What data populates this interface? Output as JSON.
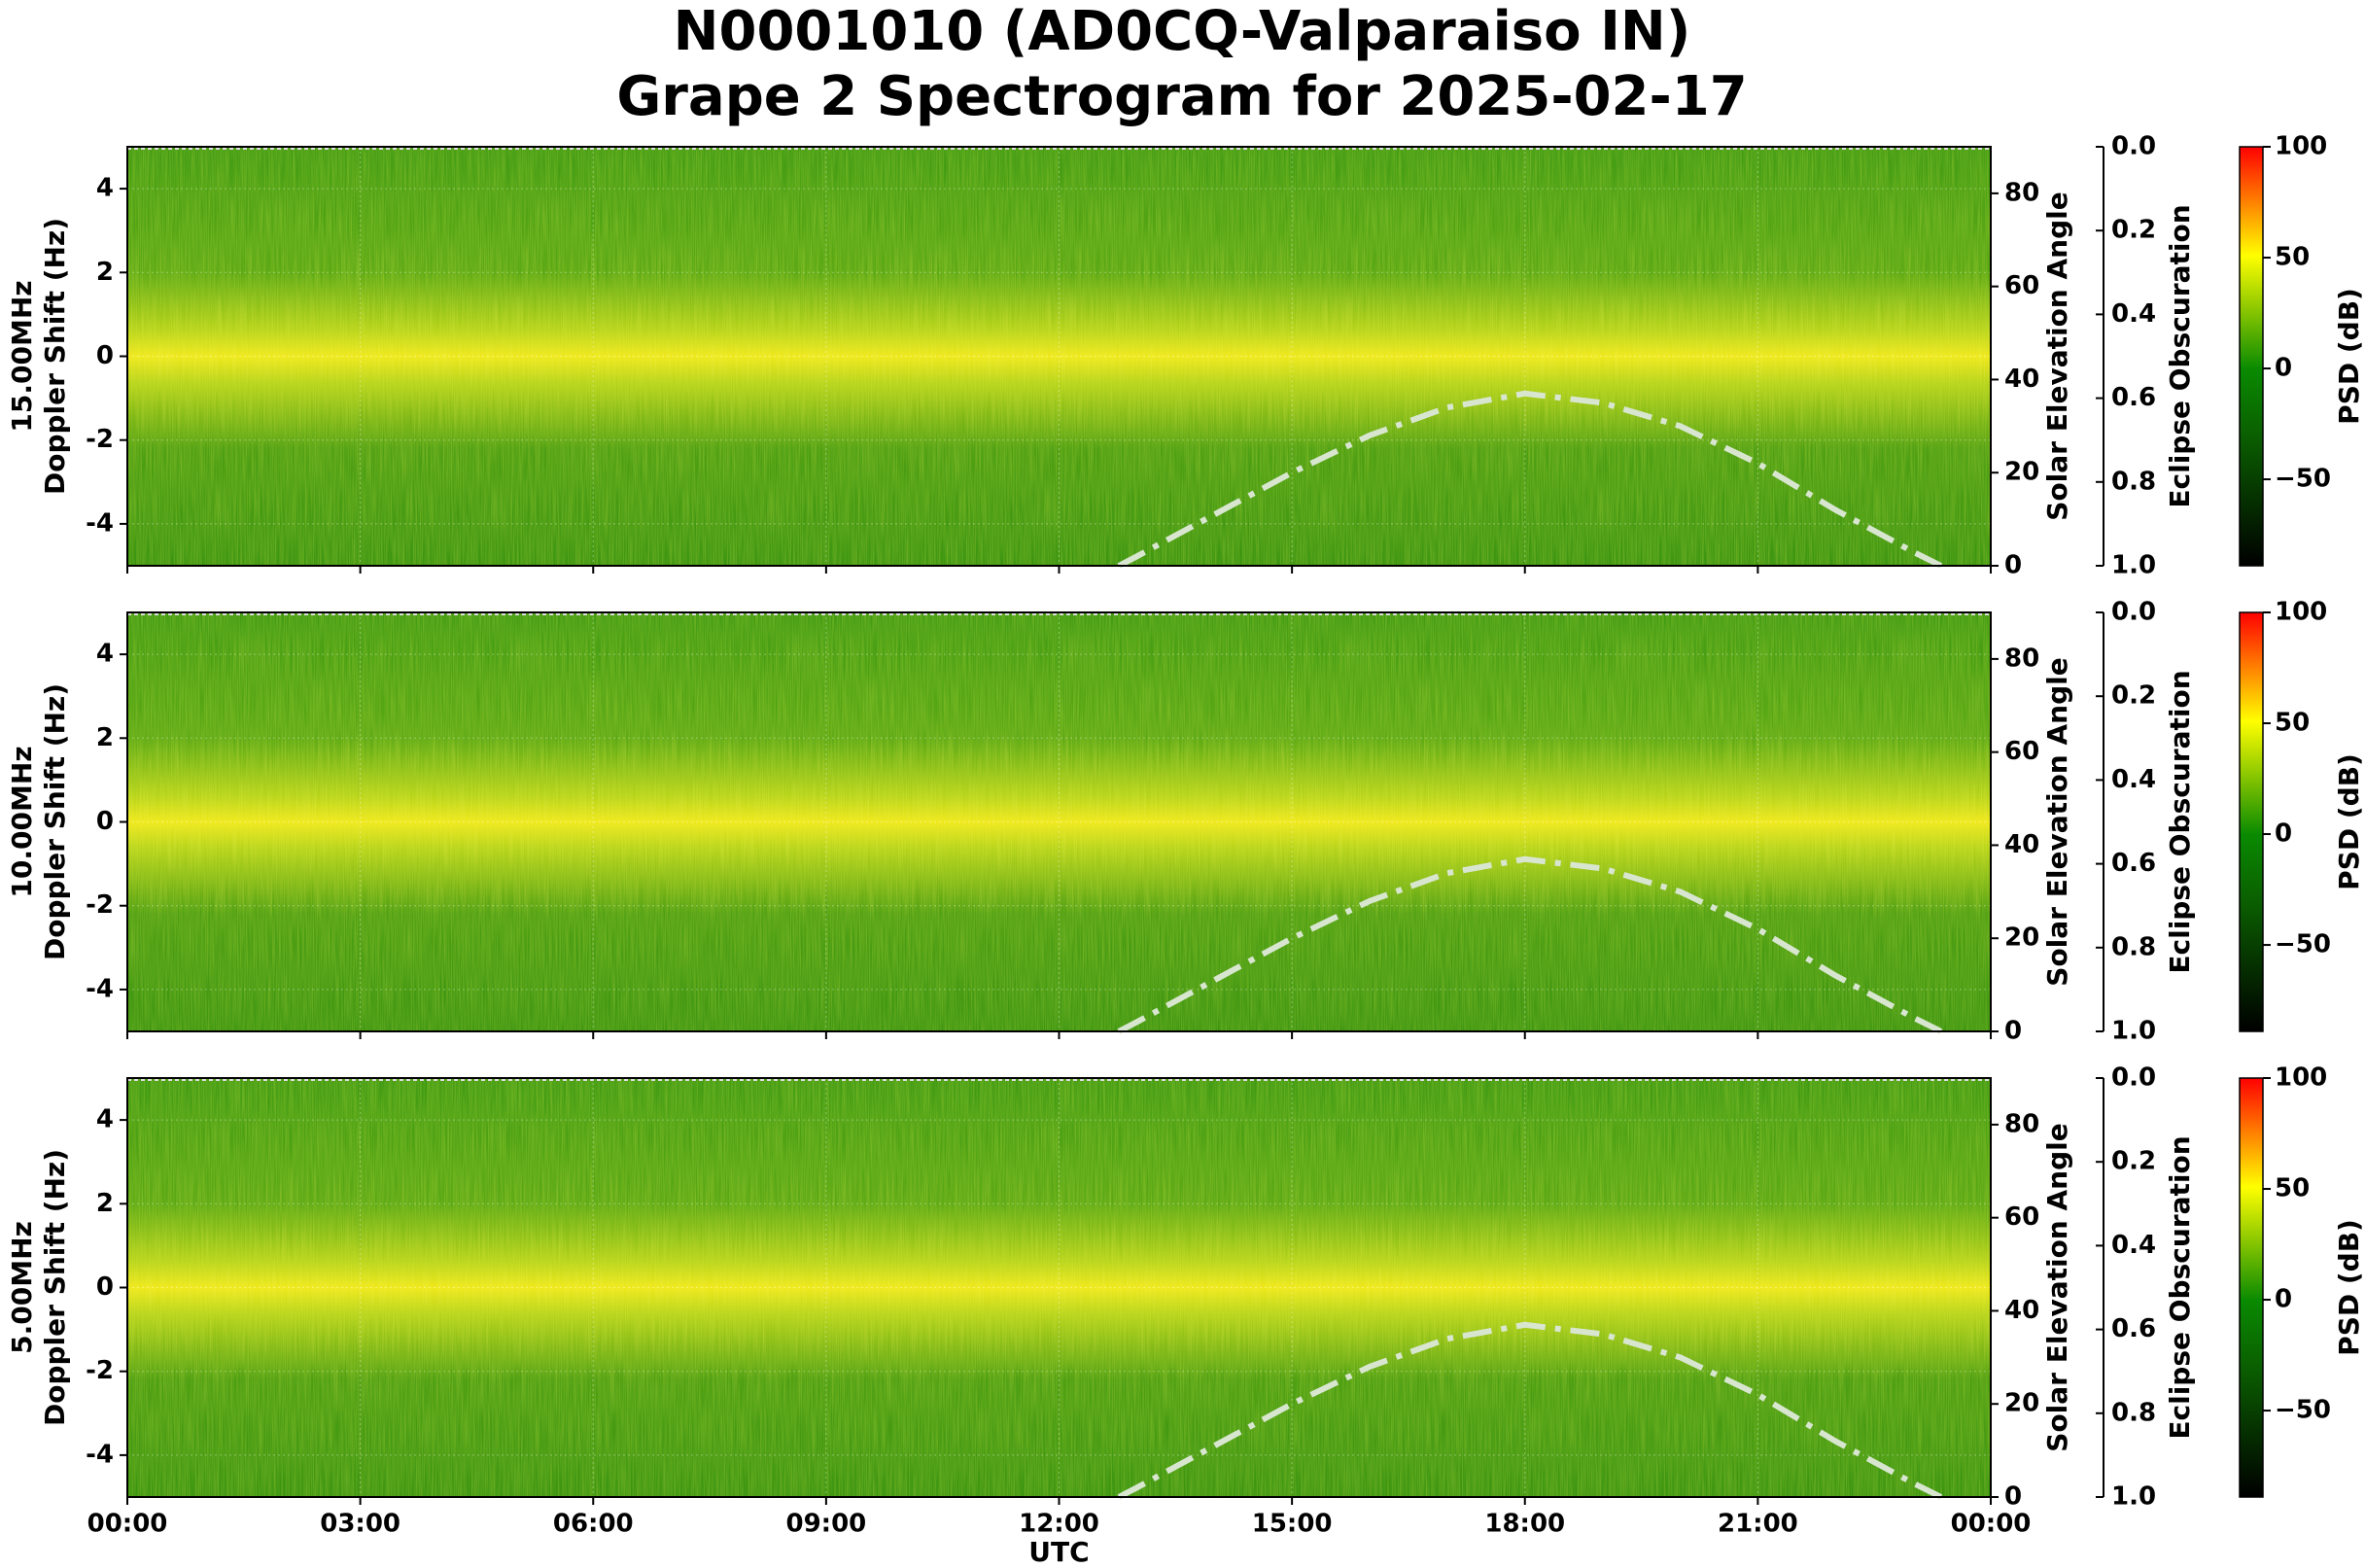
{
  "figure": {
    "title": [
      "N0001010 (AD0CQ-Valparaiso IN)",
      "Grape 2 Spectrogram for 2025-02-17"
    ],
    "xlabel": "UTC",
    "xlim": [
      0,
      24
    ],
    "xticks": [
      {
        "value": 0,
        "label": "00:00"
      },
      {
        "value": 3,
        "label": "03:00"
      },
      {
        "value": 6,
        "label": "06:00"
      },
      {
        "value": 9,
        "label": "09:00"
      },
      {
        "value": 12,
        "label": "12:00"
      },
      {
        "value": 15,
        "label": "15:00"
      },
      {
        "value": 18,
        "label": "18:00"
      },
      {
        "value": 21,
        "label": "21:00"
      },
      {
        "value": 24,
        "label": "00:00"
      }
    ]
  },
  "chart_data": [
    {
      "type": "spectrogram",
      "ylabel": [
        "15.00MHz",
        "Doppler Shift (Hz)"
      ],
      "ylim": [
        -5,
        5
      ],
      "yticks": [
        -4,
        -2,
        0,
        2,
        4
      ],
      "y2label": "Solar Elevation Angle",
      "y2lim": [
        0,
        90
      ],
      "y2ticks": [
        0,
        20,
        40,
        60,
        80
      ],
      "y3label": "Eclipse Obscuration",
      "y3lim": [
        1,
        0
      ],
      "y3ticks": [
        {
          "value": 0,
          "label": "0.0"
        },
        {
          "value": 0.2,
          "label": "0.2"
        },
        {
          "value": 0.4,
          "label": "0.4"
        },
        {
          "value": 0.6,
          "label": "0.6"
        },
        {
          "value": 0.8,
          "label": "0.8"
        },
        {
          "value": 1,
          "label": "1.0"
        }
      ],
      "colorbar": {
        "label": "PSD (dB)",
        "lim": [
          -89,
          100
        ],
        "ticks": [
          {
            "value": -50,
            "label": "−50"
          },
          0,
          50,
          100
        ]
      },
      "series": [
        {
          "color": "#d8e6d0",
          "axis": "y2",
          "x": [
            12.77,
            13,
            14,
            15,
            16,
            17,
            18,
            19,
            20,
            21,
            22,
            23,
            23.36
          ],
          "values": [
            0,
            2,
            11,
            20,
            28,
            34,
            37,
            35,
            30,
            22,
            12,
            3,
            0
          ]
        }
      ]
    },
    {
      "type": "spectrogram",
      "ylabel": [
        "10.00MHz",
        "Doppler Shift (Hz)"
      ],
      "ylim": [
        -5,
        5
      ],
      "yticks": [
        -4,
        -2,
        0,
        2,
        4
      ],
      "y2label": "Solar Elevation Angle",
      "y2lim": [
        0,
        90
      ],
      "y2ticks": [
        0,
        20,
        40,
        60,
        80
      ],
      "y3label": "Eclipse Obscuration",
      "y3lim": [
        1,
        0
      ],
      "y3ticks": [
        {
          "value": 0,
          "label": "0.0"
        },
        {
          "value": 0.2,
          "label": "0.2"
        },
        {
          "value": 0.4,
          "label": "0.4"
        },
        {
          "value": 0.6,
          "label": "0.6"
        },
        {
          "value": 0.8,
          "label": "0.8"
        },
        {
          "value": 1,
          "label": "1.0"
        }
      ],
      "colorbar": {
        "label": "PSD (dB)",
        "lim": [
          -89,
          100
        ],
        "ticks": [
          {
            "value": -50,
            "label": "−50"
          },
          0,
          50,
          100
        ]
      },
      "series": [
        {
          "color": "#d8e6d0",
          "axis": "y2",
          "x": [
            12.77,
            13,
            14,
            15,
            16,
            17,
            18,
            19,
            20,
            21,
            22,
            23,
            23.36
          ],
          "values": [
            0,
            2,
            11,
            20,
            28,
            34,
            37,
            35,
            30,
            22,
            12,
            3,
            0
          ]
        }
      ]
    },
    {
      "type": "spectrogram",
      "ylabel": [
        "5.00MHz",
        "Doppler Shift (Hz)"
      ],
      "ylim": [
        -5,
        5
      ],
      "yticks": [
        -4,
        -2,
        0,
        2,
        4
      ],
      "y2label": "Solar Elevation Angle",
      "y2lim": [
        0,
        90
      ],
      "y2ticks": [
        0,
        20,
        40,
        60,
        80
      ],
      "y3label": "Eclipse Obscuration",
      "y3lim": [
        1,
        0
      ],
      "y3ticks": [
        {
          "value": 0,
          "label": "0.0"
        },
        {
          "value": 0.2,
          "label": "0.2"
        },
        {
          "value": 0.4,
          "label": "0.4"
        },
        {
          "value": 0.6,
          "label": "0.6"
        },
        {
          "value": 0.8,
          "label": "0.8"
        },
        {
          "value": 1,
          "label": "1.0"
        }
      ],
      "colorbar": {
        "label": "PSD (dB)",
        "lim": [
          -89,
          100
        ],
        "ticks": [
          {
            "value": -50,
            "label": "−50"
          },
          0,
          50,
          100
        ]
      },
      "series": [
        {
          "color": "#d8e6d0",
          "axis": "y2",
          "x": [
            12.77,
            13,
            14,
            15,
            16,
            17,
            18,
            19,
            20,
            21,
            22,
            23,
            23.36
          ],
          "values": [
            0,
            2,
            11,
            20,
            28,
            34,
            37,
            35,
            30,
            22,
            12,
            3,
            0
          ]
        }
      ]
    }
  ]
}
